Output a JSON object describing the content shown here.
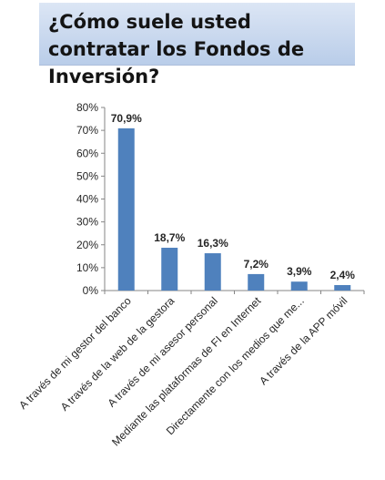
{
  "title": "¿Cómo suele usted contratar los Fondos de Inversión?",
  "chart_data": {
    "type": "bar",
    "categories": [
      "A través de mi gestor del banco",
      "A través de la web de la gestora",
      "A través de mi asesor personal",
      "Mediante las plataformas de FI en Internet",
      "Directamente con los medios que me...",
      "A través de la APP móvil"
    ],
    "values": [
      70.9,
      18.7,
      16.3,
      7.2,
      3.9,
      2.4
    ],
    "data_labels": [
      "70,9%",
      "18,7%",
      "16,3%",
      "7,2%",
      "3,9%",
      "2,4%"
    ],
    "y_ticks": [
      "0%",
      "10%",
      "20%",
      "30%",
      "40%",
      "50%",
      "60%",
      "70%",
      "80%"
    ],
    "ylim": [
      0,
      80
    ],
    "xlabel": "",
    "ylabel": "",
    "grid": false,
    "bar_color": "#4f81bd"
  }
}
